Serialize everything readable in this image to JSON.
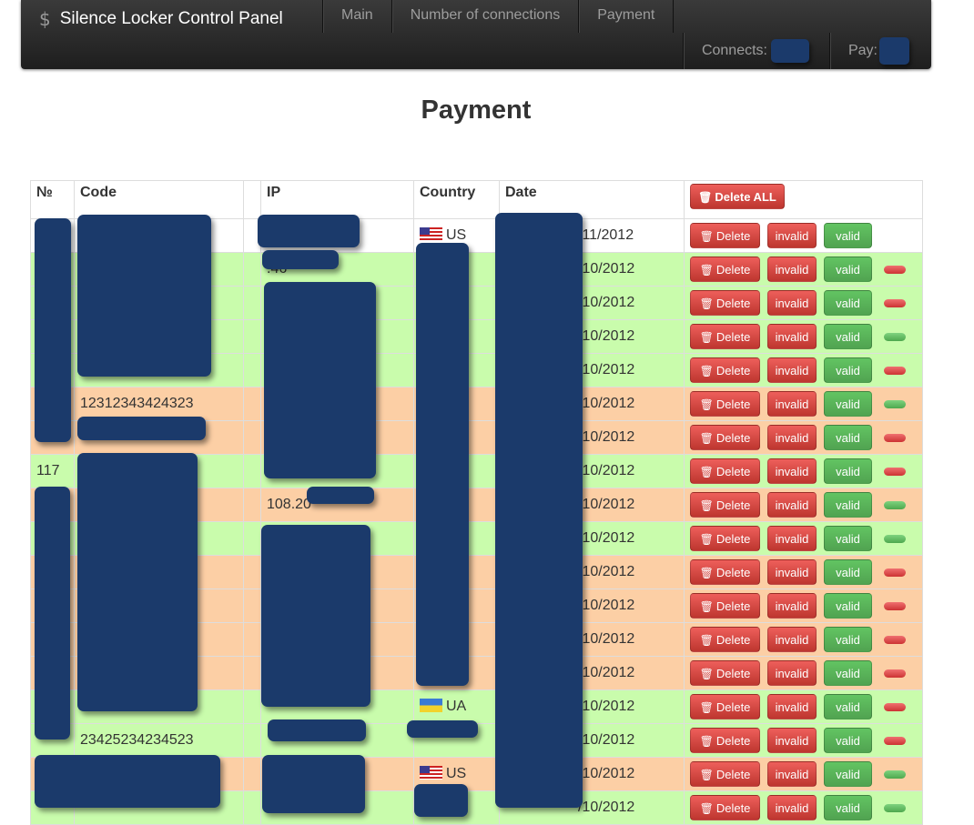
{
  "navbar": {
    "brand_icon": "dollar-icon",
    "brand": "Silence Locker Control Panel",
    "menu": [
      "Main",
      "Number of connections",
      "Payment"
    ],
    "connects_label": "Connects:",
    "pay_label": "Pay:"
  },
  "page": {
    "title": "Payment"
  },
  "table": {
    "headers": {
      "num": "№",
      "code": "Code",
      "blank": "",
      "ip": "IP",
      "country": "Country",
      "date": "Date"
    },
    "delete_all_label": "Delete ALL",
    "delete_label": "Delete",
    "invalid_label": "invalid",
    "valid_label": "valid",
    "rows": [
      {
        "num": "",
        "code": "",
        "ip": "",
        "country": "US",
        "date": "/11/2012",
        "bg": "white",
        "status": "none"
      },
      {
        "num": "",
        "code": "",
        "ip": ".46",
        "country": "",
        "date": "/10/2012",
        "bg": "green",
        "status": "red"
      },
      {
        "num": "",
        "code": "",
        "ip": "",
        "country": "",
        "date": "/10/2012",
        "bg": "green",
        "status": "red"
      },
      {
        "num": "",
        "code": "",
        "ip": "",
        "country": "",
        "date": "/10/2012",
        "bg": "green",
        "status": "green"
      },
      {
        "num": "",
        "code": "",
        "ip": "",
        "country": "",
        "date": "/10/2012",
        "bg": "green",
        "status": "red"
      },
      {
        "num": "",
        "code": "12312343424323",
        "ip": "",
        "country": "",
        "date": "/10/2012",
        "bg": "orange",
        "status": "green"
      },
      {
        "num": "",
        "code": "",
        "ip": "",
        "country": "",
        "date": "/10/2012",
        "bg": "orange",
        "status": "red"
      },
      {
        "num": "117",
        "code": "",
        "ip": "",
        "country": "",
        "date": "/10/2012",
        "bg": "green",
        "status": "red"
      },
      {
        "num": "",
        "code": "",
        "ip": "108.20",
        "country": "",
        "date": "/10/2012",
        "bg": "orange",
        "status": "green"
      },
      {
        "num": "",
        "code": "",
        "ip": "",
        "country": "",
        "date": "/10/2012",
        "bg": "green",
        "status": "green"
      },
      {
        "num": "",
        "code": "",
        "ip": "",
        "country": "",
        "date": "/10/2012",
        "bg": "orange",
        "status": "red"
      },
      {
        "num": "",
        "code": "",
        "ip": "",
        "country": "",
        "date": "/10/2012",
        "bg": "orange",
        "status": "red"
      },
      {
        "num": "",
        "code": "",
        "ip": "",
        "country": "",
        "date": "/10/2012",
        "bg": "orange",
        "status": "red"
      },
      {
        "num": "",
        "code": "",
        "ip": "",
        "country": "",
        "date": "/10/2012",
        "bg": "orange",
        "status": "red"
      },
      {
        "num": "",
        "code": "",
        "ip": "",
        "country": "UA",
        "date": "/10/2012",
        "bg": "green",
        "status": "red"
      },
      {
        "num": "",
        "code": "23425234234523",
        "ip": "",
        "country": "",
        "date": "/10/2012",
        "bg": "green",
        "status": "red"
      },
      {
        "num": "",
        "code": "",
        "ip": "",
        "country": "US",
        "date": "/10/2012",
        "bg": "orange",
        "status": "green"
      },
      {
        "num": "",
        "code": "",
        "ip": "",
        "country": "",
        "date": "/10/2012",
        "bg": "green",
        "status": "green"
      }
    ]
  },
  "colors": {
    "row_green": "#c9fcac",
    "row_orange": "#fccfa5",
    "btn_red": "#da4f49",
    "btn_green": "#5bb75b",
    "redaction": "#1b3a6b"
  }
}
